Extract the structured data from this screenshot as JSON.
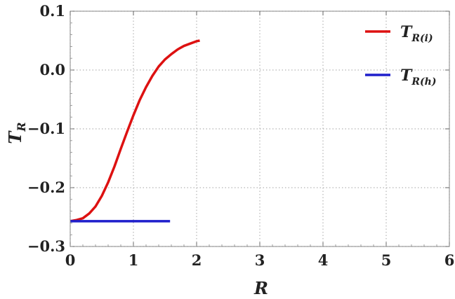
{
  "chart_data": {
    "type": "line",
    "x_axis": {
      "label": "R",
      "range": [
        0,
        6
      ],
      "ticks": [
        "0",
        "1",
        "2",
        "3",
        "4",
        "5",
        "6"
      ]
    },
    "y_axis": {
      "label": "T",
      "label_sub": "R",
      "range": [
        -0.3,
        0.1
      ],
      "ticks": [
        "0.1",
        "0.0",
        "−0.1",
        "−0.2",
        "−0.3"
      ]
    },
    "grid": "dotted",
    "legend_position": "top-right",
    "series": [
      {
        "name": "T",
        "name_sub": "R(i)",
        "color": "#dd1111",
        "x": [
          0,
          0.1,
          0.2,
          0.3,
          0.4,
          0.5,
          0.6,
          0.7,
          0.8,
          0.9,
          1.0,
          1.1,
          1.2,
          1.3,
          1.4,
          1.5,
          1.6,
          1.7,
          1.8,
          1.9,
          2.0,
          2.05
        ],
        "y": [
          -0.257,
          -0.255,
          -0.252,
          -0.244,
          -0.232,
          -0.214,
          -0.191,
          -0.164,
          -0.134,
          -0.105,
          -0.077,
          -0.051,
          -0.029,
          -0.01,
          0.006,
          0.018,
          0.027,
          0.035,
          0.041,
          0.045,
          0.049,
          0.05
        ]
      },
      {
        "name": "T",
        "name_sub": "R(h)",
        "color": "#1f1fcc",
        "x": [
          0,
          1.58
        ],
        "y": [
          -0.257,
          -0.257
        ]
      }
    ]
  }
}
